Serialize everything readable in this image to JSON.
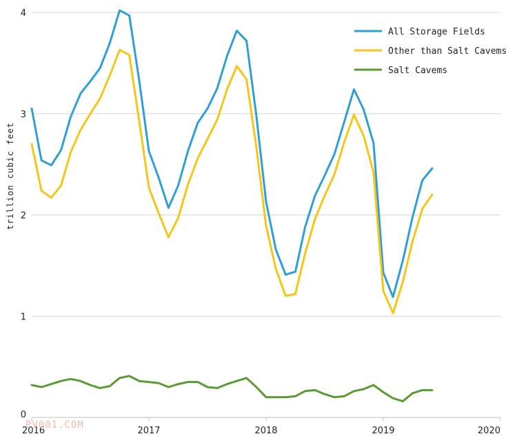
{
  "watermark": "PV001.COM",
  "chart_data": {
    "type": "line",
    "title": "",
    "xlabel": "",
    "ylabel": "trillion cubic feet",
    "xlim": [
      2016,
      2020
    ],
    "ylim": [
      0,
      4
    ],
    "x_ticks": [
      "2016",
      "2017",
      "2018",
      "2019",
      "2020"
    ],
    "y_ticks": [
      "0",
      "1",
      "2",
      "3",
      "4"
    ],
    "grid": "horizontal",
    "legend_position": "top-right",
    "x": [
      2016.0,
      2016.083,
      2016.167,
      2016.25,
      2016.333,
      2016.417,
      2016.5,
      2016.583,
      2016.667,
      2016.75,
      2016.833,
      2016.917,
      2017.0,
      2017.083,
      2017.167,
      2017.25,
      2017.333,
      2017.417,
      2017.5,
      2017.583,
      2017.667,
      2017.75,
      2017.833,
      2017.917,
      2018.0,
      2018.083,
      2018.167,
      2018.25,
      2018.333,
      2018.417,
      2018.5,
      2018.583,
      2018.667,
      2018.75,
      2018.833,
      2018.917,
      2019.0,
      2019.083,
      2019.167,
      2019.25,
      2019.333,
      2019.417
    ],
    "series": [
      {
        "name": "All Storage Fields",
        "color": "#2e9fd6",
        "values": [
          3.05,
          2.54,
          2.49,
          2.64,
          2.97,
          3.2,
          3.32,
          3.45,
          3.7,
          4.02,
          3.97,
          3.33,
          2.63,
          2.37,
          2.07,
          2.29,
          2.63,
          2.91,
          3.05,
          3.25,
          3.57,
          3.82,
          3.72,
          2.98,
          2.13,
          1.66,
          1.41,
          1.44,
          1.88,
          2.19,
          2.39,
          2.6,
          2.92,
          3.24,
          3.04,
          2.71,
          1.43,
          1.19,
          1.55,
          1.98,
          2.34,
          2.46
        ]
      },
      {
        "name": "Other than Salt Cavems",
        "color": "#f5c518",
        "values": [
          2.7,
          2.24,
          2.17,
          2.29,
          2.62,
          2.84,
          3.0,
          3.15,
          3.38,
          3.63,
          3.58,
          2.93,
          2.27,
          2.02,
          1.78,
          1.97,
          2.3,
          2.56,
          2.75,
          2.94,
          3.24,
          3.47,
          3.34,
          2.67,
          1.89,
          1.47,
          1.2,
          1.22,
          1.62,
          1.96,
          2.19,
          2.4,
          2.72,
          2.99,
          2.78,
          2.42,
          1.25,
          1.03,
          1.34,
          1.74,
          2.06,
          2.2
        ]
      },
      {
        "name": "Salt Cavems",
        "color": "#5a9a32",
        "values": [
          0.32,
          0.3,
          0.33,
          0.36,
          0.38,
          0.36,
          0.32,
          0.29,
          0.31,
          0.39,
          0.41,
          0.36,
          0.35,
          0.34,
          0.3,
          0.33,
          0.35,
          0.35,
          0.3,
          0.29,
          0.33,
          0.36,
          0.39,
          0.3,
          0.2,
          0.2,
          0.2,
          0.21,
          0.26,
          0.27,
          0.23,
          0.2,
          0.21,
          0.26,
          0.28,
          0.32,
          0.25,
          0.19,
          0.16,
          0.24,
          0.27,
          0.27
        ]
      }
    ]
  }
}
